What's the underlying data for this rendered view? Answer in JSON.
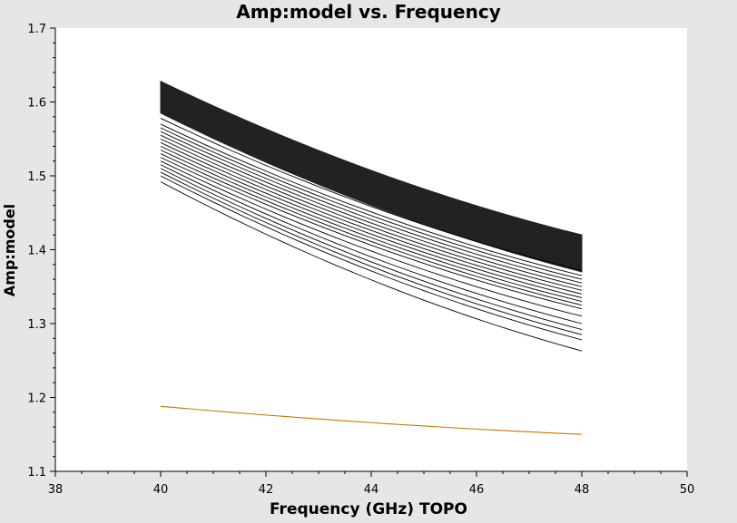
{
  "chart_data": {
    "type": "line",
    "title": "Amp:model vs. Frequency",
    "xlabel": "Frequency (GHz) TOPO",
    "ylabel": "Amp:model",
    "xlim": [
      38,
      50
    ],
    "ylim": [
      1.1,
      1.7
    ],
    "xticks": [
      "38",
      "40",
      "42",
      "44",
      "46",
      "48",
      "50"
    ],
    "yticks": [
      "1.1",
      "1.2",
      "1.3",
      "1.4",
      "1.5",
      "1.6",
      "1.7"
    ],
    "grid": false,
    "band": {
      "color": "#222222",
      "x": [
        40,
        48
      ],
      "upper": [
        1.628,
        1.42
      ],
      "lower": [
        1.585,
        1.37
      ]
    },
    "series_black": [
      {
        "x": [
          40,
          48
        ],
        "y": [
          1.578,
          1.372
        ]
      },
      {
        "x": [
          40,
          48
        ],
        "y": [
          1.57,
          1.365
        ]
      },
      {
        "x": [
          40,
          48
        ],
        "y": [
          1.565,
          1.36
        ]
      },
      {
        "x": [
          40,
          48
        ],
        "y": [
          1.56,
          1.355
        ]
      },
      {
        "x": [
          40,
          48
        ],
        "y": [
          1.555,
          1.35
        ]
      },
      {
        "x": [
          40,
          48
        ],
        "y": [
          1.55,
          1.345
        ]
      },
      {
        "x": [
          40,
          48
        ],
        "y": [
          1.545,
          1.34
        ]
      },
      {
        "x": [
          40,
          48
        ],
        "y": [
          1.54,
          1.335
        ]
      },
      {
        "x": [
          40,
          48
        ],
        "y": [
          1.535,
          1.33
        ]
      },
      {
        "x": [
          40,
          48
        ],
        "y": [
          1.53,
          1.325
        ]
      },
      {
        "x": [
          40,
          48
        ],
        "y": [
          1.525,
          1.32
        ]
      },
      {
        "x": [
          40,
          48
        ],
        "y": [
          1.52,
          1.31
        ]
      },
      {
        "x": [
          40,
          48
        ],
        "y": [
          1.515,
          1.3
        ]
      },
      {
        "x": [
          40,
          48
        ],
        "y": [
          1.51,
          1.292
        ]
      },
      {
        "x": [
          40,
          48
        ],
        "y": [
          1.505,
          1.285
        ]
      },
      {
        "x": [
          40,
          48
        ],
        "y": [
          1.5,
          1.278
        ]
      },
      {
        "x": [
          40,
          48
        ],
        "y": [
          1.492,
          1.263
        ]
      }
    ],
    "series_orange": {
      "color": "#c87800",
      "x": [
        40,
        48
      ],
      "y": [
        1.188,
        1.15
      ]
    }
  }
}
